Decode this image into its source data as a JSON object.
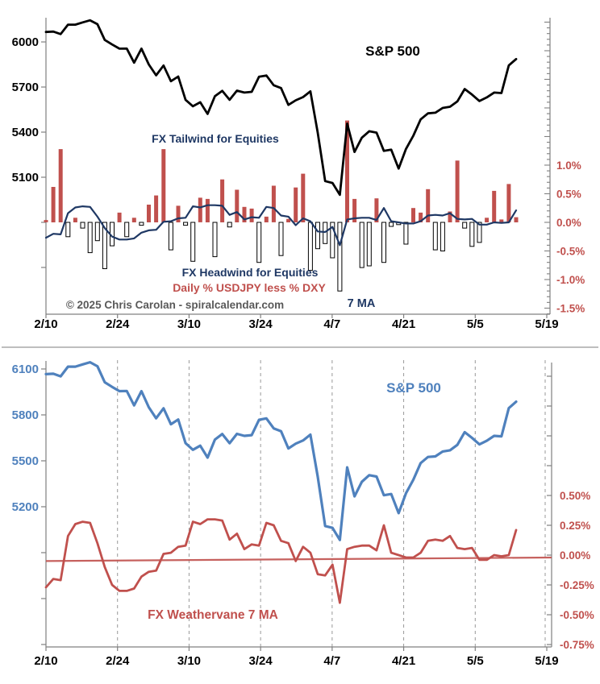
{
  "page": {
    "background": "#ffffff"
  },
  "colors": {
    "black_line": "#000000",
    "navy": "#1f3864",
    "red": "#c0504d",
    "blue": "#4f81bd",
    "axis_gray": "#808080",
    "copyright_gray": "#595959",
    "grid_gray": "#999999",
    "border_gray": "#a8a8a8",
    "neg_bar_fill": "#ffffff",
    "neg_bar_stroke": "#000000"
  },
  "chart_data": [
    {
      "type": "line+bar",
      "title": "S&P 500",
      "annotations": {
        "tailwind": "FX Tailwind for Equities",
        "headwind": "FX Headwind for Equities",
        "bar_series_label": "Daily % USDJPY less % DXY",
        "ma_label": "7 MA",
        "copyright": "© 2025 Chris Carolan - spiralcalendar.com"
      },
      "x_tick_labels": [
        "2/10",
        "2/24",
        "3/10",
        "3/24",
        "4/7",
        "4/21",
        "5/5",
        "5/19"
      ],
      "left_axis": {
        "labels": [
          "6000",
          "5700",
          "5400",
          "5100"
        ],
        "label_values": [
          6000,
          5700,
          5400,
          5100
        ],
        "unlabeled_tick_values": [
          4800,
          4500
        ],
        "range_bottom_top": [
          4189,
          6161
        ]
      },
      "right_axis": {
        "labels": [
          "1.0%",
          "0.5%",
          "0.0%",
          "-0.5%",
          "-1.0%",
          "-1.5%"
        ],
        "label_values": [
          1.0,
          0.5,
          0.0,
          -0.5,
          -1.0,
          -1.5
        ],
        "minor_tick_step": 0.1,
        "minor_tick_top": 3.5,
        "minor_tick_bottom": -1.6,
        "range_bottom_top": [
          -1.606,
          3.577
        ]
      },
      "dates": [
        "2/10",
        "2/11",
        "2/12",
        "2/13",
        "2/14",
        "2/18",
        "2/19",
        "2/20",
        "2/21",
        "2/24",
        "2/25",
        "2/26",
        "2/27",
        "2/28",
        "3/3",
        "3/4",
        "3/5",
        "3/6",
        "3/7",
        "3/10",
        "3/11",
        "3/12",
        "3/13",
        "3/14",
        "3/17",
        "3/18",
        "3/19",
        "3/20",
        "3/21",
        "3/24",
        "3/25",
        "3/26",
        "3/27",
        "3/28",
        "3/31",
        "4/1",
        "4/2",
        "4/3",
        "4/4",
        "4/7",
        "4/8",
        "4/9",
        "4/10",
        "4/11",
        "4/14",
        "4/15",
        "4/16",
        "4/17",
        "4/21",
        "4/22",
        "4/23",
        "4/24",
        "4/25",
        "4/28",
        "4/29",
        "4/30",
        "5/1",
        "5/2",
        "5/5",
        "5/6",
        "5/7",
        "5/8",
        "5/9",
        "5/12",
        "5/13"
      ],
      "series": [
        {
          "name": "S&P 500",
          "type": "line",
          "axis": "left",
          "values": [
            6066,
            6069,
            6052,
            6115,
            6115,
            6130,
            6144,
            6118,
            6013,
            5983,
            5955,
            5956,
            5862,
            5955,
            5850,
            5778,
            5843,
            5739,
            5770,
            5615,
            5572,
            5599,
            5521,
            5639,
            5675,
            5615,
            5676,
            5663,
            5668,
            5768,
            5777,
            5712,
            5693,
            5581,
            5612,
            5633,
            5671,
            5396,
            5074,
            5062,
            4983,
            5457,
            5268,
            5363,
            5406,
            5397,
            5275,
            5283,
            5158,
            5288,
            5376,
            5485,
            5525,
            5529,
            5561,
            5569,
            5604,
            5687,
            5650,
            5607,
            5631,
            5663,
            5660,
            5844,
            5886
          ]
        },
        {
          "name": "Daily % USDJPY less % DXY",
          "type": "bar",
          "axis": "right",
          "values": [
            0.04,
            0.62,
            1.28,
            -0.25,
            0.08,
            -0.1,
            -0.53,
            -0.32,
            -0.81,
            -0.41,
            0.17,
            -0.25,
            0.08,
            -0.05,
            0.31,
            0.47,
            1.28,
            -0.48,
            0.29,
            -0.05,
            -0.68,
            0.43,
            0.41,
            -0.6,
            0.75,
            -0.08,
            0.57,
            0.27,
            0.24,
            -0.7,
            0.1,
            0.64,
            -0.58,
            0.06,
            0.61,
            0.85,
            -0.84,
            -0.46,
            -0.37,
            -0.62,
            -1.2,
            1.78,
            0.41,
            -0.79,
            -0.76,
            0.42,
            -0.7,
            -0.07,
            -0.04,
            -0.38,
            0.25,
            0.17,
            0.58,
            -0.48,
            -0.5,
            0.19,
            1.08,
            -0.1,
            -0.42,
            -0.35,
            0.08,
            0.55,
            0.05,
            0.67,
            0.09
          ]
        },
        {
          "name": "7 MA",
          "type": "line",
          "axis": "right",
          "values": [
            -0.27,
            -0.2,
            -0.21,
            0.16,
            0.26,
            0.28,
            0.27,
            0.1,
            -0.1,
            -0.25,
            -0.3,
            -0.3,
            -0.28,
            -0.18,
            -0.14,
            -0.13,
            0.01,
            0.02,
            0.07,
            0.08,
            0.28,
            0.26,
            0.3,
            0.3,
            0.29,
            0.13,
            0.18,
            0.05,
            0.09,
            0.08,
            0.27,
            0.25,
            0.12,
            0.1,
            -0.05,
            0.07,
            0.02,
            -0.16,
            -0.17,
            -0.08,
            -0.4,
            0.05,
            0.07,
            0.08,
            0.08,
            0.04,
            0.25,
            0.02,
            0.0,
            -0.02,
            -0.02,
            0.02,
            0.12,
            0.13,
            0.12,
            0.16,
            0.06,
            0.05,
            0.06,
            -0.04,
            -0.04,
            0.0,
            -0.01,
            0.0,
            0.21
          ]
        }
      ]
    },
    {
      "type": "line",
      "title": "S&P 500",
      "annotations": {
        "weathervane_label": "FX Weathervane 7 MA"
      },
      "x_tick_labels": [
        "2/10",
        "2/24",
        "3/10",
        "3/24",
        "4/7",
        "4/21",
        "5/5",
        "5/19"
      ],
      "left_axis": {
        "labels": [
          "6100",
          "5800",
          "5500",
          "5200"
        ],
        "label_values": [
          6100,
          5800,
          5500,
          5200
        ],
        "unlabeled_tick_values": [
          4900,
          4600,
          4300
        ],
        "range_bottom_top": [
          4284,
          6242
        ]
      },
      "right_axis": {
        "labels": [
          "0.50%",
          "0.25%",
          "0.00%",
          "-0.25%",
          "-0.50%",
          "-0.75%"
        ],
        "label_values": [
          0.5,
          0.25,
          0.0,
          -0.25,
          -0.5,
          -0.75
        ],
        "tick_step": 0.25,
        "tick_top": 1.5,
        "tick_bottom": -0.75,
        "range_bottom_top": [
          -0.77,
          1.743
        ]
      },
      "grid": {
        "vertical_dashed": true
      },
      "dates": [
        "2/10",
        "2/11",
        "2/12",
        "2/13",
        "2/14",
        "2/18",
        "2/19",
        "2/20",
        "2/21",
        "2/24",
        "2/25",
        "2/26",
        "2/27",
        "2/28",
        "3/3",
        "3/4",
        "3/5",
        "3/6",
        "3/7",
        "3/10",
        "3/11",
        "3/12",
        "3/13",
        "3/14",
        "3/17",
        "3/18",
        "3/19",
        "3/20",
        "3/21",
        "3/24",
        "3/25",
        "3/26",
        "3/27",
        "3/28",
        "3/31",
        "4/1",
        "4/2",
        "4/3",
        "4/4",
        "4/7",
        "4/8",
        "4/9",
        "4/10",
        "4/11",
        "4/14",
        "4/15",
        "4/16",
        "4/17",
        "4/21",
        "4/22",
        "4/23",
        "4/24",
        "4/25",
        "4/28",
        "4/29",
        "4/30",
        "5/1",
        "5/2",
        "5/5",
        "5/6",
        "5/7",
        "5/8",
        "5/9",
        "5/12",
        "5/13"
      ],
      "series": [
        {
          "name": "S&P 500",
          "type": "line",
          "axis": "left",
          "values": [
            6066,
            6069,
            6052,
            6115,
            6115,
            6130,
            6144,
            6118,
            6013,
            5983,
            5955,
            5956,
            5862,
            5955,
            5850,
            5778,
            5843,
            5739,
            5770,
            5615,
            5572,
            5599,
            5521,
            5639,
            5675,
            5615,
            5676,
            5663,
            5668,
            5768,
            5777,
            5712,
            5693,
            5581,
            5612,
            5633,
            5671,
            5396,
            5074,
            5062,
            4983,
            5457,
            5268,
            5363,
            5406,
            5397,
            5275,
            5283,
            5158,
            5288,
            5376,
            5485,
            5525,
            5529,
            5561,
            5569,
            5604,
            5687,
            5650,
            5607,
            5631,
            5663,
            5660,
            5844,
            5886
          ]
        },
        {
          "name": "FX Weathervane 7 MA",
          "type": "line",
          "axis": "right",
          "values": [
            -0.27,
            -0.2,
            -0.21,
            0.16,
            0.26,
            0.28,
            0.27,
            0.1,
            -0.1,
            -0.25,
            -0.3,
            -0.3,
            -0.28,
            -0.18,
            -0.14,
            -0.13,
            0.01,
            0.02,
            0.07,
            0.08,
            0.28,
            0.26,
            0.3,
            0.3,
            0.29,
            0.13,
            0.18,
            0.05,
            0.09,
            0.08,
            0.27,
            0.25,
            0.12,
            0.1,
            -0.05,
            0.07,
            0.02,
            -0.16,
            -0.17,
            -0.08,
            -0.4,
            0.05,
            0.07,
            0.08,
            0.08,
            0.04,
            0.25,
            0.02,
            0.0,
            -0.02,
            -0.02,
            0.02,
            0.12,
            0.13,
            0.12,
            0.16,
            0.06,
            0.05,
            0.06,
            -0.04,
            -0.04,
            0.0,
            -0.01,
            0.0,
            0.21
          ]
        },
        {
          "name": "Weathervane trend line",
          "type": "trend",
          "axis": "right",
          "start": -0.05,
          "end": -0.02
        }
      ]
    }
  ]
}
